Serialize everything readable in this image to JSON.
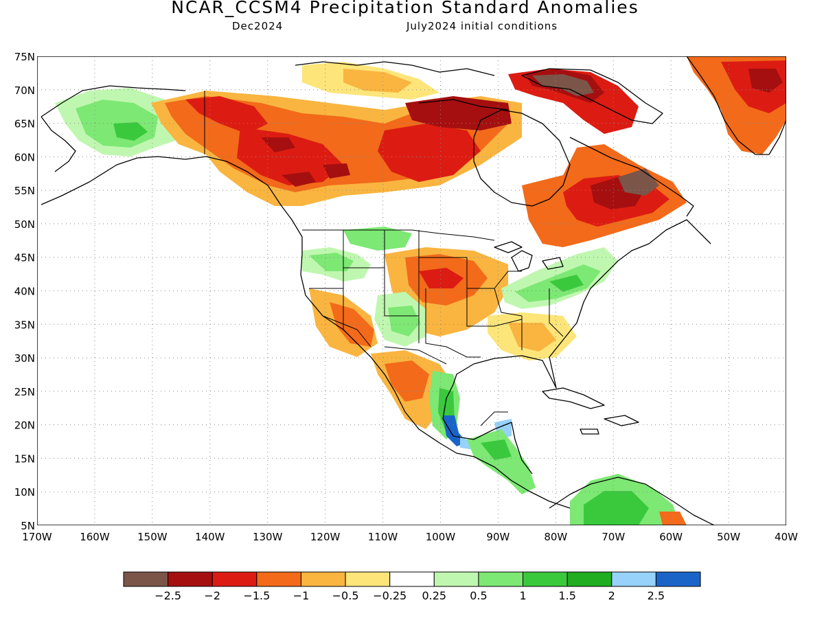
{
  "header": {
    "title": "NCAR_CCSM4 Precipitation Standard Anomalies",
    "target_month": "Dec2024",
    "init_conditions": "July2024 initial conditions"
  },
  "axes": {
    "lat_labels": [
      "75N",
      "70N",
      "65N",
      "60N",
      "55N",
      "50N",
      "45N",
      "40N",
      "35N",
      "30N",
      "25N",
      "20N",
      "15N",
      "10N",
      "5N"
    ],
    "lon_labels": [
      "170W",
      "160W",
      "150W",
      "140W",
      "130W",
      "120W",
      "110W",
      "100W",
      "90W",
      "80W",
      "70W",
      "60W",
      "50W",
      "40W"
    ],
    "lat_range": [
      5,
      75
    ],
    "lon_range": [
      -170,
      -40
    ],
    "grid": "dotted"
  },
  "colorbar": {
    "colors": [
      "#7b5548",
      "#a50f0f",
      "#dc1c12",
      "#f26a1a",
      "#f9b540",
      "#fde57a",
      "#ffffff",
      "#c0f7b0",
      "#7de874",
      "#3ac93d",
      "#20ad20",
      "#96d2fa",
      "#1a64c8"
    ],
    "tick_labels": [
      "−2.5",
      "−2",
      "−1.5",
      "−1",
      "−0.5",
      "−0.25",
      "0.25",
      "0.5",
      "1",
      "1.5",
      "2",
      "2.5"
    ]
  },
  "anomaly_regions": [
    {
      "name": "alaska-interior",
      "level": 0.75
    },
    {
      "name": "yukon-bc",
      "level": -1.75
    },
    {
      "name": "northern-canada",
      "level": -1.75
    },
    {
      "name": "quebec-labrador",
      "level": -1.75
    },
    {
      "name": "baffin-island",
      "level": -2.5
    },
    {
      "name": "greenland",
      "level": -1.75
    },
    {
      "name": "us-central-plains",
      "level": -1.25
    },
    {
      "name": "us-southwest",
      "level": -1.25
    },
    {
      "name": "us-northwest",
      "level": 0.75
    },
    {
      "name": "four-corners",
      "level": 0.75
    },
    {
      "name": "ohio-valley-northeast",
      "level": 0.75
    },
    {
      "name": "southeast-us",
      "level": -0.5
    },
    {
      "name": "mexico-west",
      "level": -0.75
    },
    {
      "name": "mexico-east-gulf",
      "level": 1.25
    },
    {
      "name": "veracruz",
      "level": 2.75
    },
    {
      "name": "central-america",
      "level": 1.25
    },
    {
      "name": "northern-south-america",
      "level": 1.5
    }
  ]
}
